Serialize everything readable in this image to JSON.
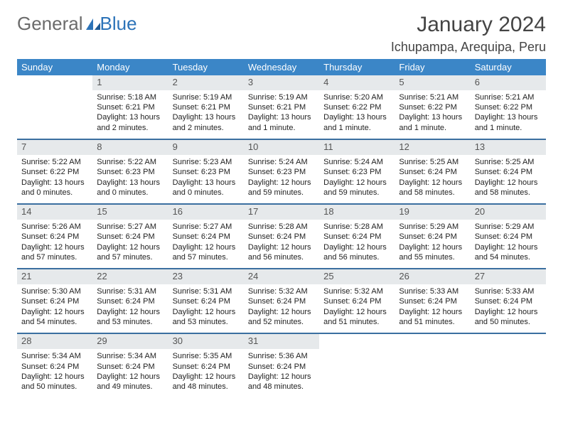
{
  "logo": {
    "part1": "General",
    "part2": "Blue"
  },
  "title": "January 2024",
  "location": "Ichupampa, Arequipa, Peru",
  "colors": {
    "header_bg": "#3b86c7",
    "header_text": "#ffffff",
    "daynum_bg": "#e6e9eb",
    "row_border": "#3b6fa0",
    "logo_gray": "#6b6b6b",
    "logo_blue": "#2c73b8",
    "body_text": "#222222",
    "background": "#ffffff"
  },
  "typography": {
    "month_fontsize": 30,
    "location_fontsize": 18,
    "dayheader_fontsize": 13,
    "daynum_fontsize": 13,
    "daytext_fontsize": 11
  },
  "day_headers": [
    "Sunday",
    "Monday",
    "Tuesday",
    "Wednesday",
    "Thursday",
    "Friday",
    "Saturday"
  ],
  "weeks": [
    [
      {
        "empty": true
      },
      {
        "num": "1",
        "sunrise": "Sunrise: 5:18 AM",
        "sunset": "Sunset: 6:21 PM",
        "daylight1": "Daylight: 13 hours",
        "daylight2": "and 2 minutes."
      },
      {
        "num": "2",
        "sunrise": "Sunrise: 5:19 AM",
        "sunset": "Sunset: 6:21 PM",
        "daylight1": "Daylight: 13 hours",
        "daylight2": "and 2 minutes."
      },
      {
        "num": "3",
        "sunrise": "Sunrise: 5:19 AM",
        "sunset": "Sunset: 6:21 PM",
        "daylight1": "Daylight: 13 hours",
        "daylight2": "and 1 minute."
      },
      {
        "num": "4",
        "sunrise": "Sunrise: 5:20 AM",
        "sunset": "Sunset: 6:22 PM",
        "daylight1": "Daylight: 13 hours",
        "daylight2": "and 1 minute."
      },
      {
        "num": "5",
        "sunrise": "Sunrise: 5:21 AM",
        "sunset": "Sunset: 6:22 PM",
        "daylight1": "Daylight: 13 hours",
        "daylight2": "and 1 minute."
      },
      {
        "num": "6",
        "sunrise": "Sunrise: 5:21 AM",
        "sunset": "Sunset: 6:22 PM",
        "daylight1": "Daylight: 13 hours",
        "daylight2": "and 1 minute."
      }
    ],
    [
      {
        "num": "7",
        "sunrise": "Sunrise: 5:22 AM",
        "sunset": "Sunset: 6:22 PM",
        "daylight1": "Daylight: 13 hours",
        "daylight2": "and 0 minutes."
      },
      {
        "num": "8",
        "sunrise": "Sunrise: 5:22 AM",
        "sunset": "Sunset: 6:23 PM",
        "daylight1": "Daylight: 13 hours",
        "daylight2": "and 0 minutes."
      },
      {
        "num": "9",
        "sunrise": "Sunrise: 5:23 AM",
        "sunset": "Sunset: 6:23 PM",
        "daylight1": "Daylight: 13 hours",
        "daylight2": "and 0 minutes."
      },
      {
        "num": "10",
        "sunrise": "Sunrise: 5:24 AM",
        "sunset": "Sunset: 6:23 PM",
        "daylight1": "Daylight: 12 hours",
        "daylight2": "and 59 minutes."
      },
      {
        "num": "11",
        "sunrise": "Sunrise: 5:24 AM",
        "sunset": "Sunset: 6:23 PM",
        "daylight1": "Daylight: 12 hours",
        "daylight2": "and 59 minutes."
      },
      {
        "num": "12",
        "sunrise": "Sunrise: 5:25 AM",
        "sunset": "Sunset: 6:24 PM",
        "daylight1": "Daylight: 12 hours",
        "daylight2": "and 58 minutes."
      },
      {
        "num": "13",
        "sunrise": "Sunrise: 5:25 AM",
        "sunset": "Sunset: 6:24 PM",
        "daylight1": "Daylight: 12 hours",
        "daylight2": "and 58 minutes."
      }
    ],
    [
      {
        "num": "14",
        "sunrise": "Sunrise: 5:26 AM",
        "sunset": "Sunset: 6:24 PM",
        "daylight1": "Daylight: 12 hours",
        "daylight2": "and 57 minutes."
      },
      {
        "num": "15",
        "sunrise": "Sunrise: 5:27 AM",
        "sunset": "Sunset: 6:24 PM",
        "daylight1": "Daylight: 12 hours",
        "daylight2": "and 57 minutes."
      },
      {
        "num": "16",
        "sunrise": "Sunrise: 5:27 AM",
        "sunset": "Sunset: 6:24 PM",
        "daylight1": "Daylight: 12 hours",
        "daylight2": "and 57 minutes."
      },
      {
        "num": "17",
        "sunrise": "Sunrise: 5:28 AM",
        "sunset": "Sunset: 6:24 PM",
        "daylight1": "Daylight: 12 hours",
        "daylight2": "and 56 minutes."
      },
      {
        "num": "18",
        "sunrise": "Sunrise: 5:28 AM",
        "sunset": "Sunset: 6:24 PM",
        "daylight1": "Daylight: 12 hours",
        "daylight2": "and 56 minutes."
      },
      {
        "num": "19",
        "sunrise": "Sunrise: 5:29 AM",
        "sunset": "Sunset: 6:24 PM",
        "daylight1": "Daylight: 12 hours",
        "daylight2": "and 55 minutes."
      },
      {
        "num": "20",
        "sunrise": "Sunrise: 5:29 AM",
        "sunset": "Sunset: 6:24 PM",
        "daylight1": "Daylight: 12 hours",
        "daylight2": "and 54 minutes."
      }
    ],
    [
      {
        "num": "21",
        "sunrise": "Sunrise: 5:30 AM",
        "sunset": "Sunset: 6:24 PM",
        "daylight1": "Daylight: 12 hours",
        "daylight2": "and 54 minutes."
      },
      {
        "num": "22",
        "sunrise": "Sunrise: 5:31 AM",
        "sunset": "Sunset: 6:24 PM",
        "daylight1": "Daylight: 12 hours",
        "daylight2": "and 53 minutes."
      },
      {
        "num": "23",
        "sunrise": "Sunrise: 5:31 AM",
        "sunset": "Sunset: 6:24 PM",
        "daylight1": "Daylight: 12 hours",
        "daylight2": "and 53 minutes."
      },
      {
        "num": "24",
        "sunrise": "Sunrise: 5:32 AM",
        "sunset": "Sunset: 6:24 PM",
        "daylight1": "Daylight: 12 hours",
        "daylight2": "and 52 minutes."
      },
      {
        "num": "25",
        "sunrise": "Sunrise: 5:32 AM",
        "sunset": "Sunset: 6:24 PM",
        "daylight1": "Daylight: 12 hours",
        "daylight2": "and 51 minutes."
      },
      {
        "num": "26",
        "sunrise": "Sunrise: 5:33 AM",
        "sunset": "Sunset: 6:24 PM",
        "daylight1": "Daylight: 12 hours",
        "daylight2": "and 51 minutes."
      },
      {
        "num": "27",
        "sunrise": "Sunrise: 5:33 AM",
        "sunset": "Sunset: 6:24 PM",
        "daylight1": "Daylight: 12 hours",
        "daylight2": "and 50 minutes."
      }
    ],
    [
      {
        "num": "28",
        "sunrise": "Sunrise: 5:34 AM",
        "sunset": "Sunset: 6:24 PM",
        "daylight1": "Daylight: 12 hours",
        "daylight2": "and 50 minutes."
      },
      {
        "num": "29",
        "sunrise": "Sunrise: 5:34 AM",
        "sunset": "Sunset: 6:24 PM",
        "daylight1": "Daylight: 12 hours",
        "daylight2": "and 49 minutes."
      },
      {
        "num": "30",
        "sunrise": "Sunrise: 5:35 AM",
        "sunset": "Sunset: 6:24 PM",
        "daylight1": "Daylight: 12 hours",
        "daylight2": "and 48 minutes."
      },
      {
        "num": "31",
        "sunrise": "Sunrise: 5:36 AM",
        "sunset": "Sunset: 6:24 PM",
        "daylight1": "Daylight: 12 hours",
        "daylight2": "and 48 minutes."
      },
      {
        "empty": true
      },
      {
        "empty": true
      },
      {
        "empty": true
      }
    ]
  ]
}
